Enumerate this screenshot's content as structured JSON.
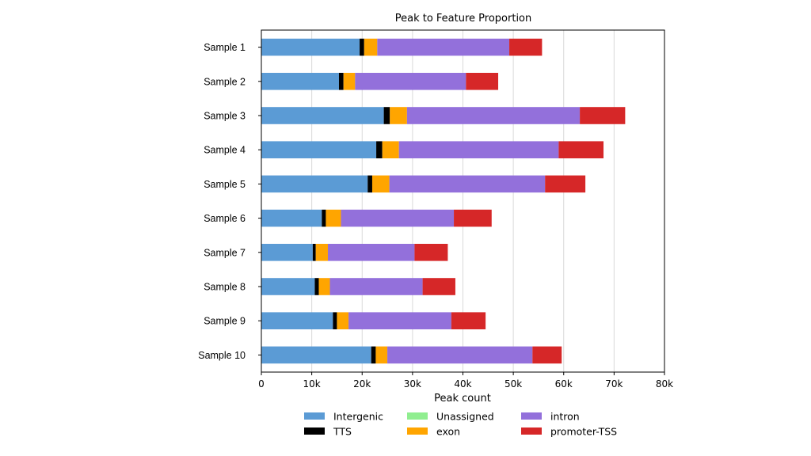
{
  "chart_data": {
    "type": "bar",
    "orientation": "horizontal",
    "stacked": true,
    "title": "Peak to Feature Proportion",
    "xlabel": "Peak count",
    "ylabel": "",
    "xlim": [
      0,
      80000
    ],
    "x_ticks": [
      0,
      10000,
      20000,
      30000,
      40000,
      50000,
      60000,
      70000,
      80000
    ],
    "x_tick_labels": [
      "0",
      "10k",
      "20k",
      "30k",
      "40k",
      "50k",
      "60k",
      "70k",
      "80k"
    ],
    "grid": "vertical",
    "legend_position": "bottom",
    "categories": [
      "Sample 1",
      "Sample 2",
      "Sample 3",
      "Sample 4",
      "Sample 5",
      "Sample 6",
      "Sample 7",
      "Sample 8",
      "Sample 9",
      "Sample 10"
    ],
    "series": [
      {
        "name": "Intergenic",
        "color": "#5b9bd5",
        "values": [
          19500,
          15400,
          24300,
          22800,
          21100,
          12000,
          10200,
          10600,
          14200,
          21800
        ]
      },
      {
        "name": "TTS",
        "color": "#000000",
        "values": [
          900,
          900,
          1200,
          1200,
          900,
          800,
          600,
          800,
          800,
          900
        ]
      },
      {
        "name": "Unassigned",
        "color": "#90ee90",
        "values": [
          0,
          0,
          0,
          0,
          0,
          0,
          0,
          0,
          0,
          0
        ]
      },
      {
        "name": "exon",
        "color": "#ffa500",
        "values": [
          2600,
          2300,
          3400,
          3300,
          3400,
          3000,
          2400,
          2200,
          2300,
          2300
        ]
      },
      {
        "name": "intron",
        "color": "#9370db",
        "values": [
          26200,
          22000,
          34300,
          31700,
          30900,
          22400,
          17200,
          18400,
          20400,
          28800
        ]
      },
      {
        "name": "promoter-TSS",
        "color": "#d62728",
        "values": [
          6500,
          6400,
          9000,
          8900,
          8000,
          7500,
          6600,
          6500,
          6800,
          5800
        ]
      }
    ]
  }
}
